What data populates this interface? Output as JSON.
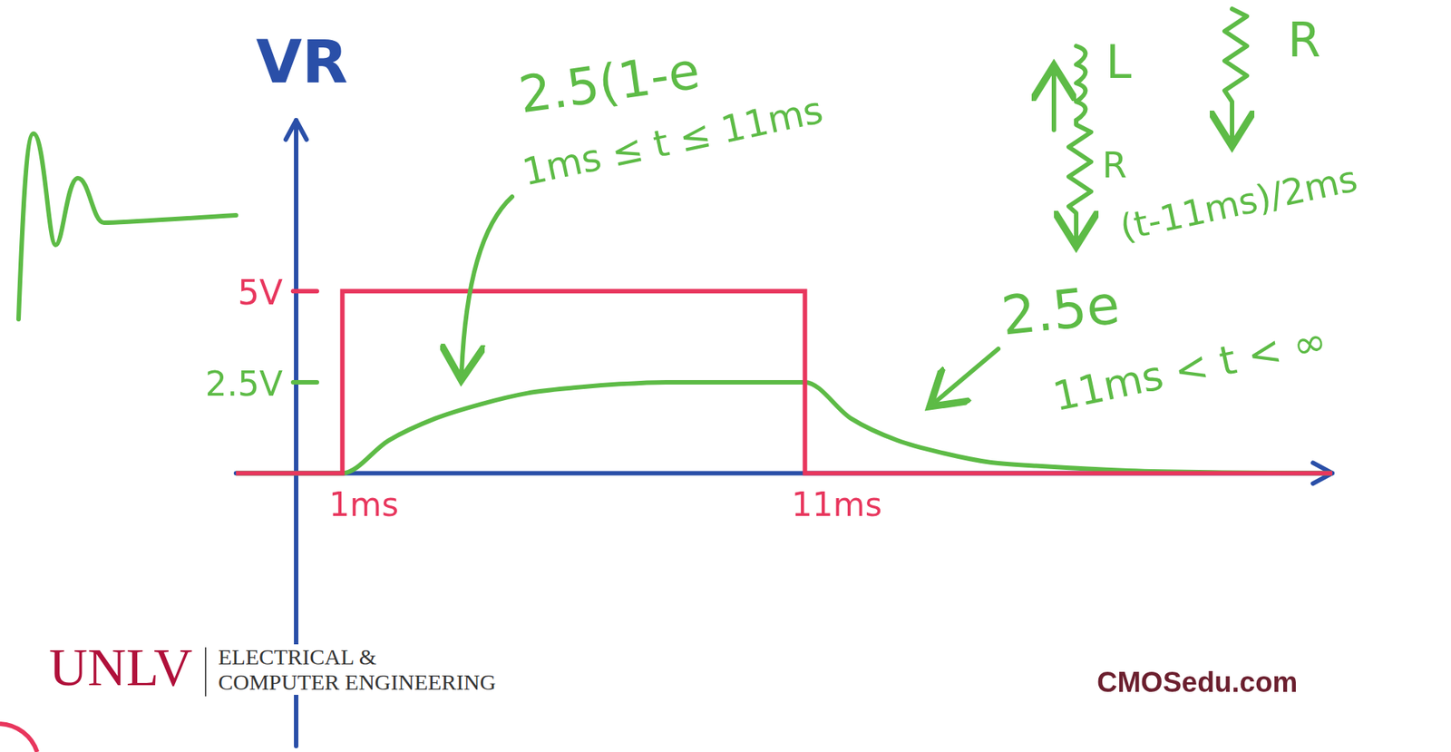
{
  "chart_data": {
    "type": "line",
    "y_label": "VR",
    "xlim": [
      -1.3,
      22.4
    ],
    "ylim": [
      -7.5,
      9.7
    ],
    "xticks": [
      {
        "value": 1,
        "label": "1ms"
      },
      {
        "value": 11,
        "label": "11ms"
      }
    ],
    "yticks": [
      {
        "value": 2.5,
        "label": "2.5V"
      },
      {
        "value": 5,
        "label": "5V"
      }
    ],
    "grid": false,
    "series": [
      {
        "color": "#e8365d",
        "line_style": "solid",
        "marker": "none",
        "x": [
          -1.3,
          1,
          1,
          11,
          11,
          22.4
        ],
        "values": [
          0,
          0,
          5,
          5,
          0,
          0
        ]
      },
      {
        "color": "#5dbb46",
        "line_style": "smooth",
        "marker": "none",
        "x": [
          -1.3,
          0,
          1,
          2,
          3,
          4,
          5,
          6,
          7,
          8,
          9,
          10,
          11,
          12,
          13,
          14,
          15,
          16,
          18,
          20,
          22.4
        ],
        "values": [
          0,
          0,
          0,
          0.9,
          1.5,
          1.9,
          2.2,
          2.35,
          2.45,
          2.5,
          2.5,
          2.5,
          2.5,
          1.5,
          0.9,
          0.55,
          0.3,
          0.2,
          0.07,
          0.02,
          0
        ]
      }
    ],
    "annotations": [
      "2.5(1-e",
      "1ms ≤ t ≤ 11ms",
      "2.5e",
      "(t-11ms)/2ms",
      "11ms < t < ∞"
    ]
  },
  "circuit": {
    "labels": [
      "L",
      "R",
      "R"
    ]
  },
  "footer": {
    "logo": "UNLV",
    "department": [
      "ELECTRICAL &",
      "COMPUTER ENGINEERING"
    ],
    "site": "CMOSedu.com"
  }
}
